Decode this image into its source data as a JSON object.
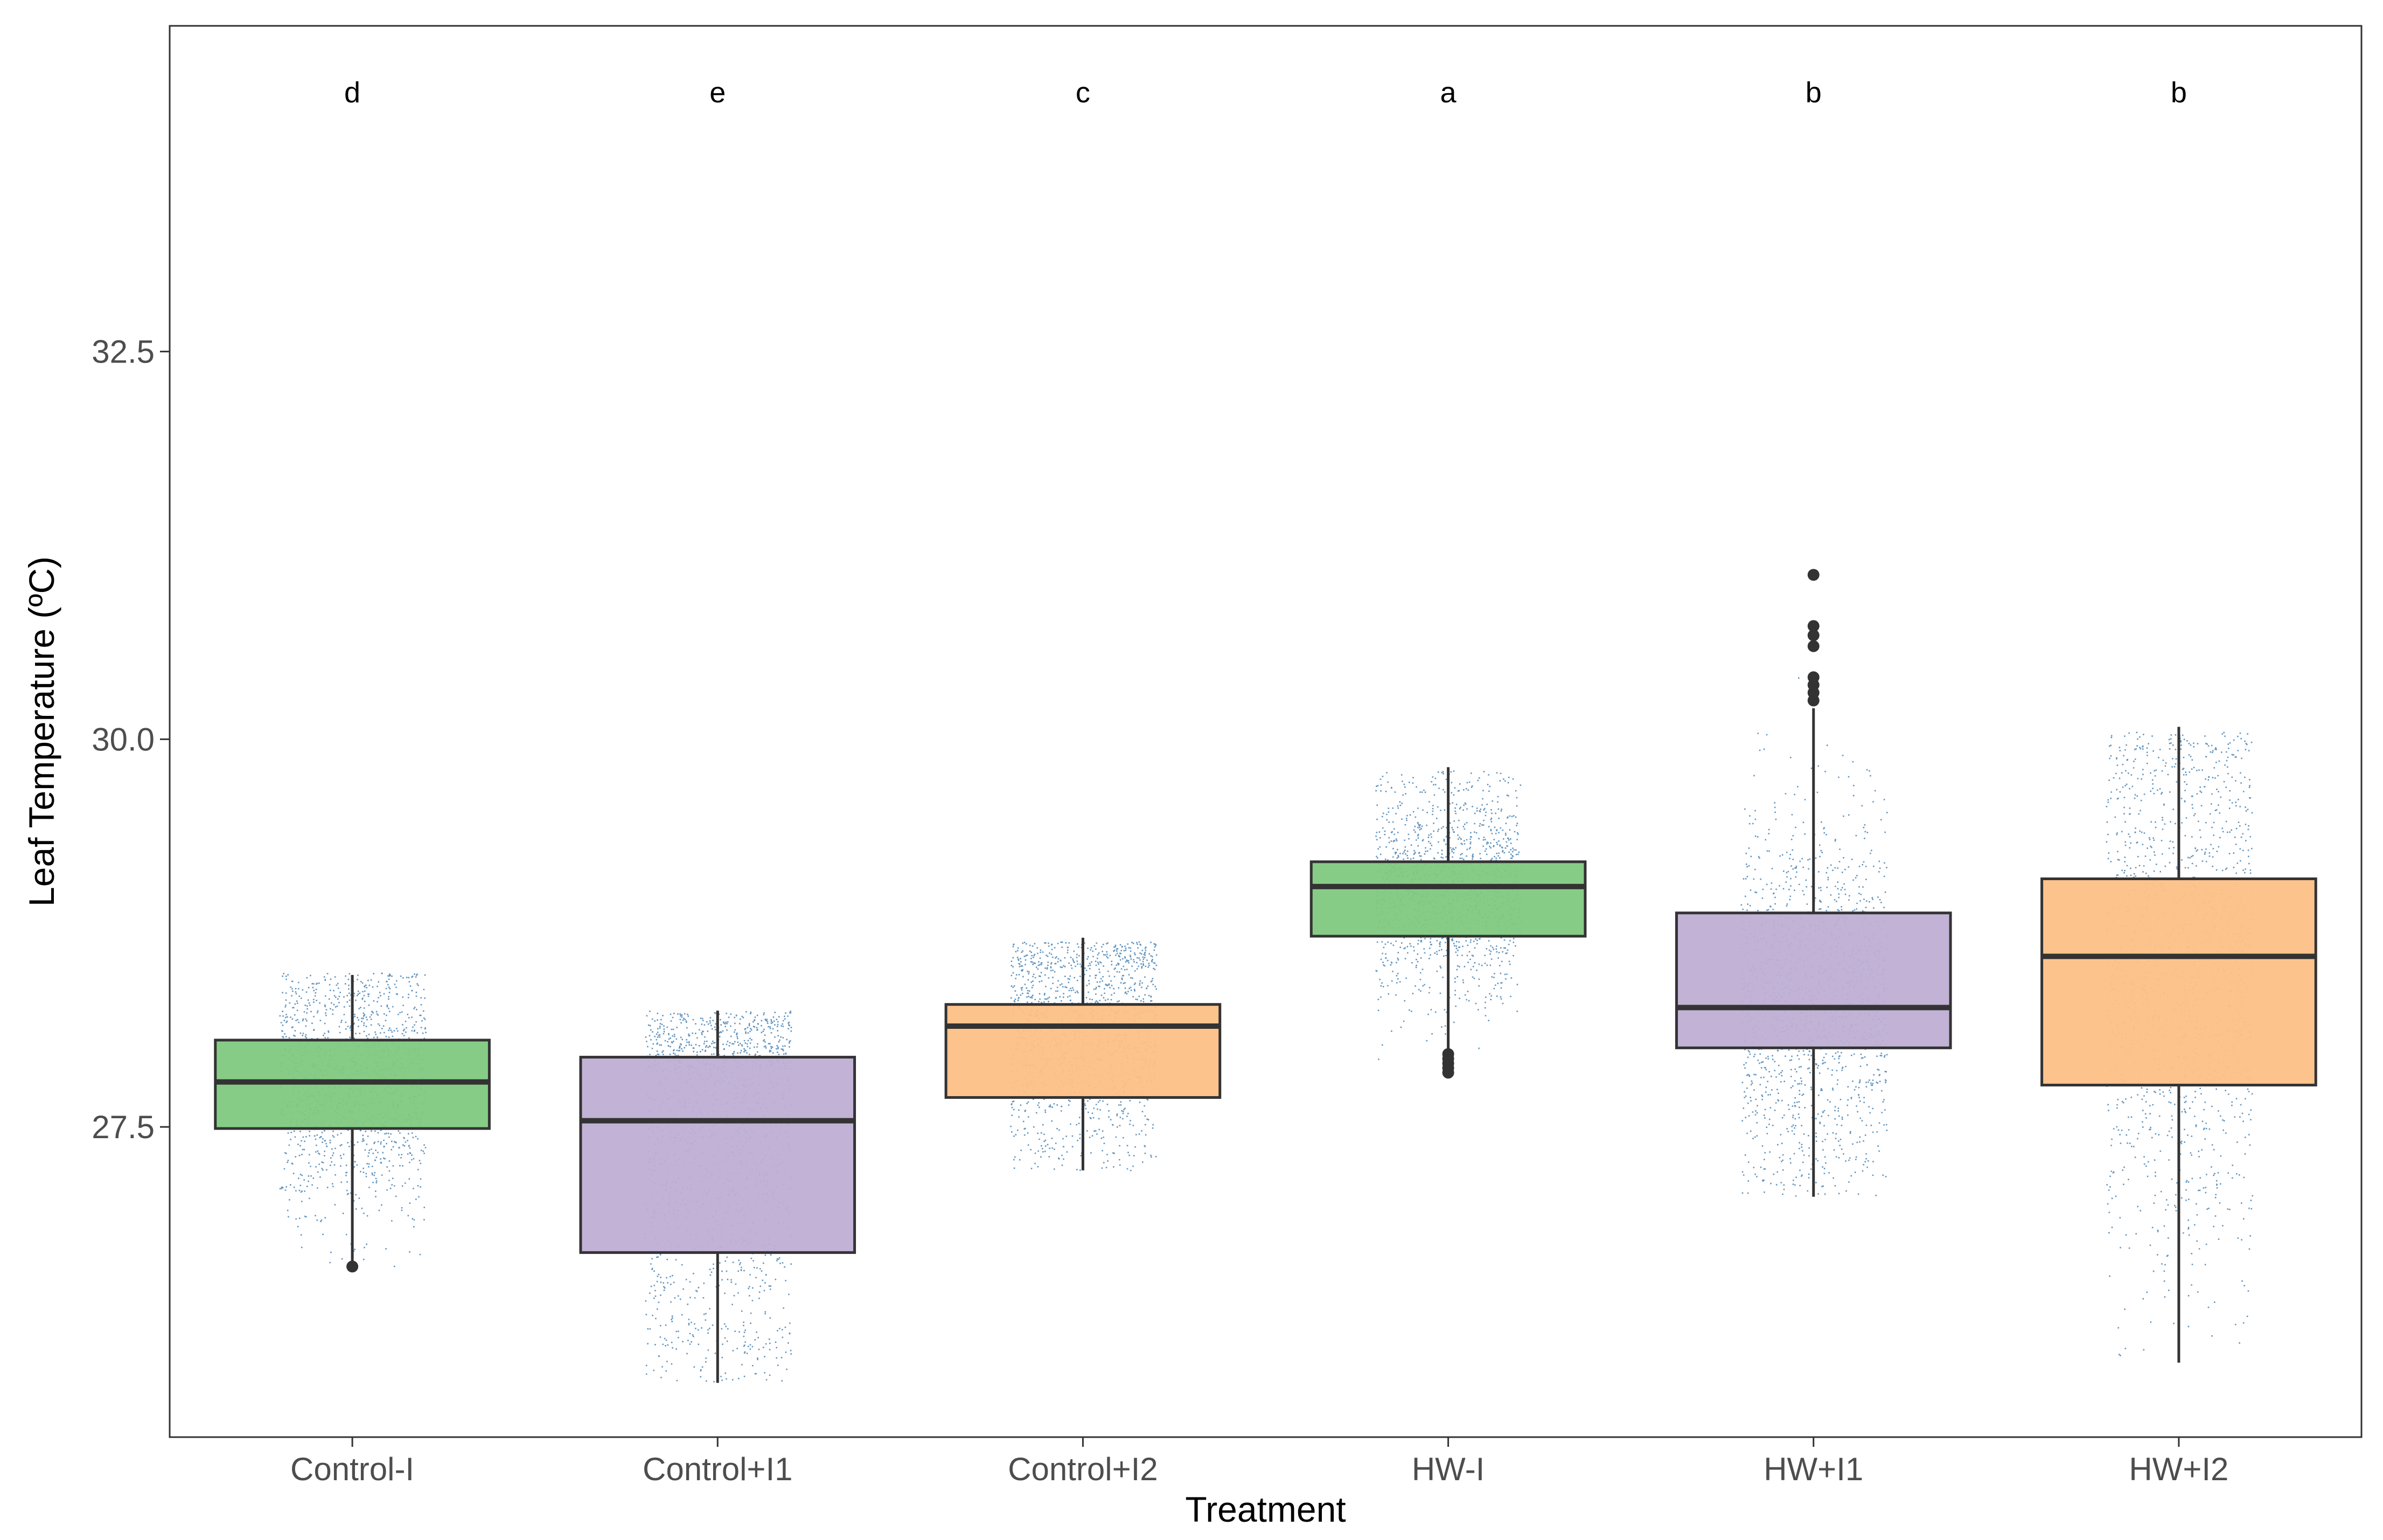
{
  "chart_data": {
    "type": "boxplot",
    "xlabel": "Treatment",
    "ylabel": "Leaf Temperature (ºC)",
    "ylim": [
      25.5,
      34.6
    ],
    "yticks": [
      27.5,
      30.0,
      32.5
    ],
    "ytick_labels": [
      "27.5",
      "30.0",
      "32.5"
    ],
    "grid": false,
    "legend": "none",
    "jitter_color": "#4682B4",
    "categories": [
      "Control-I",
      "Control+I1",
      "Control+I2",
      "HW-I",
      "HW+I1",
      "HW+I2"
    ],
    "significance_letters": [
      "d",
      "e",
      "c",
      "a",
      "b",
      "b"
    ],
    "boxes": [
      {
        "category": "Control-I",
        "fill": "#7FC97F",
        "whisker_low": 26.6,
        "q1": 27.49,
        "median": 27.79,
        "q3": 28.06,
        "whisker_high": 28.48,
        "outliers": [
          26.6
        ],
        "points_low": 26.6,
        "points_high": 28.5
      },
      {
        "category": "Control+I1",
        "fill": "#BEAED4",
        "whisker_low": 25.85,
        "q1": 26.69,
        "median": 27.54,
        "q3": 27.95,
        "whisker_high": 28.25,
        "outliers": [],
        "points_low": 25.85,
        "points_high": 28.25
      },
      {
        "category": "Control+I2",
        "fill": "#FDC086",
        "whisker_low": 27.22,
        "q1": 27.69,
        "median": 28.15,
        "q3": 28.29,
        "whisker_high": 28.72,
        "outliers": [],
        "points_low": 27.22,
        "points_high": 28.7
      },
      {
        "category": "HW-I",
        "fill": "#7FC97F",
        "whisker_low": 27.95,
        "q1": 28.73,
        "median": 29.05,
        "q3": 29.21,
        "whisker_high": 29.82,
        "outliers": [
          27.85,
          27.88,
          27.91,
          27.94,
          27.97
        ],
        "points_low": 27.85,
        "points_high": 29.8
      },
      {
        "category": "HW+I1",
        "fill": "#BEAED4",
        "whisker_low": 27.05,
        "q1": 28.01,
        "median": 28.27,
        "q3": 28.88,
        "whisker_high": 30.2,
        "outliers": [
          30.25,
          30.3,
          30.35,
          30.4,
          30.6,
          30.67,
          30.73,
          31.06
        ],
        "points_low": 27.05,
        "points_high": 31.0
      },
      {
        "category": "HW+I2",
        "fill": "#FDC086",
        "whisker_low": 25.98,
        "q1": 27.77,
        "median": 28.6,
        "q3": 29.1,
        "whisker_high": 30.08,
        "outliers": [],
        "points_low": 25.98,
        "points_high": 30.05
      }
    ]
  }
}
